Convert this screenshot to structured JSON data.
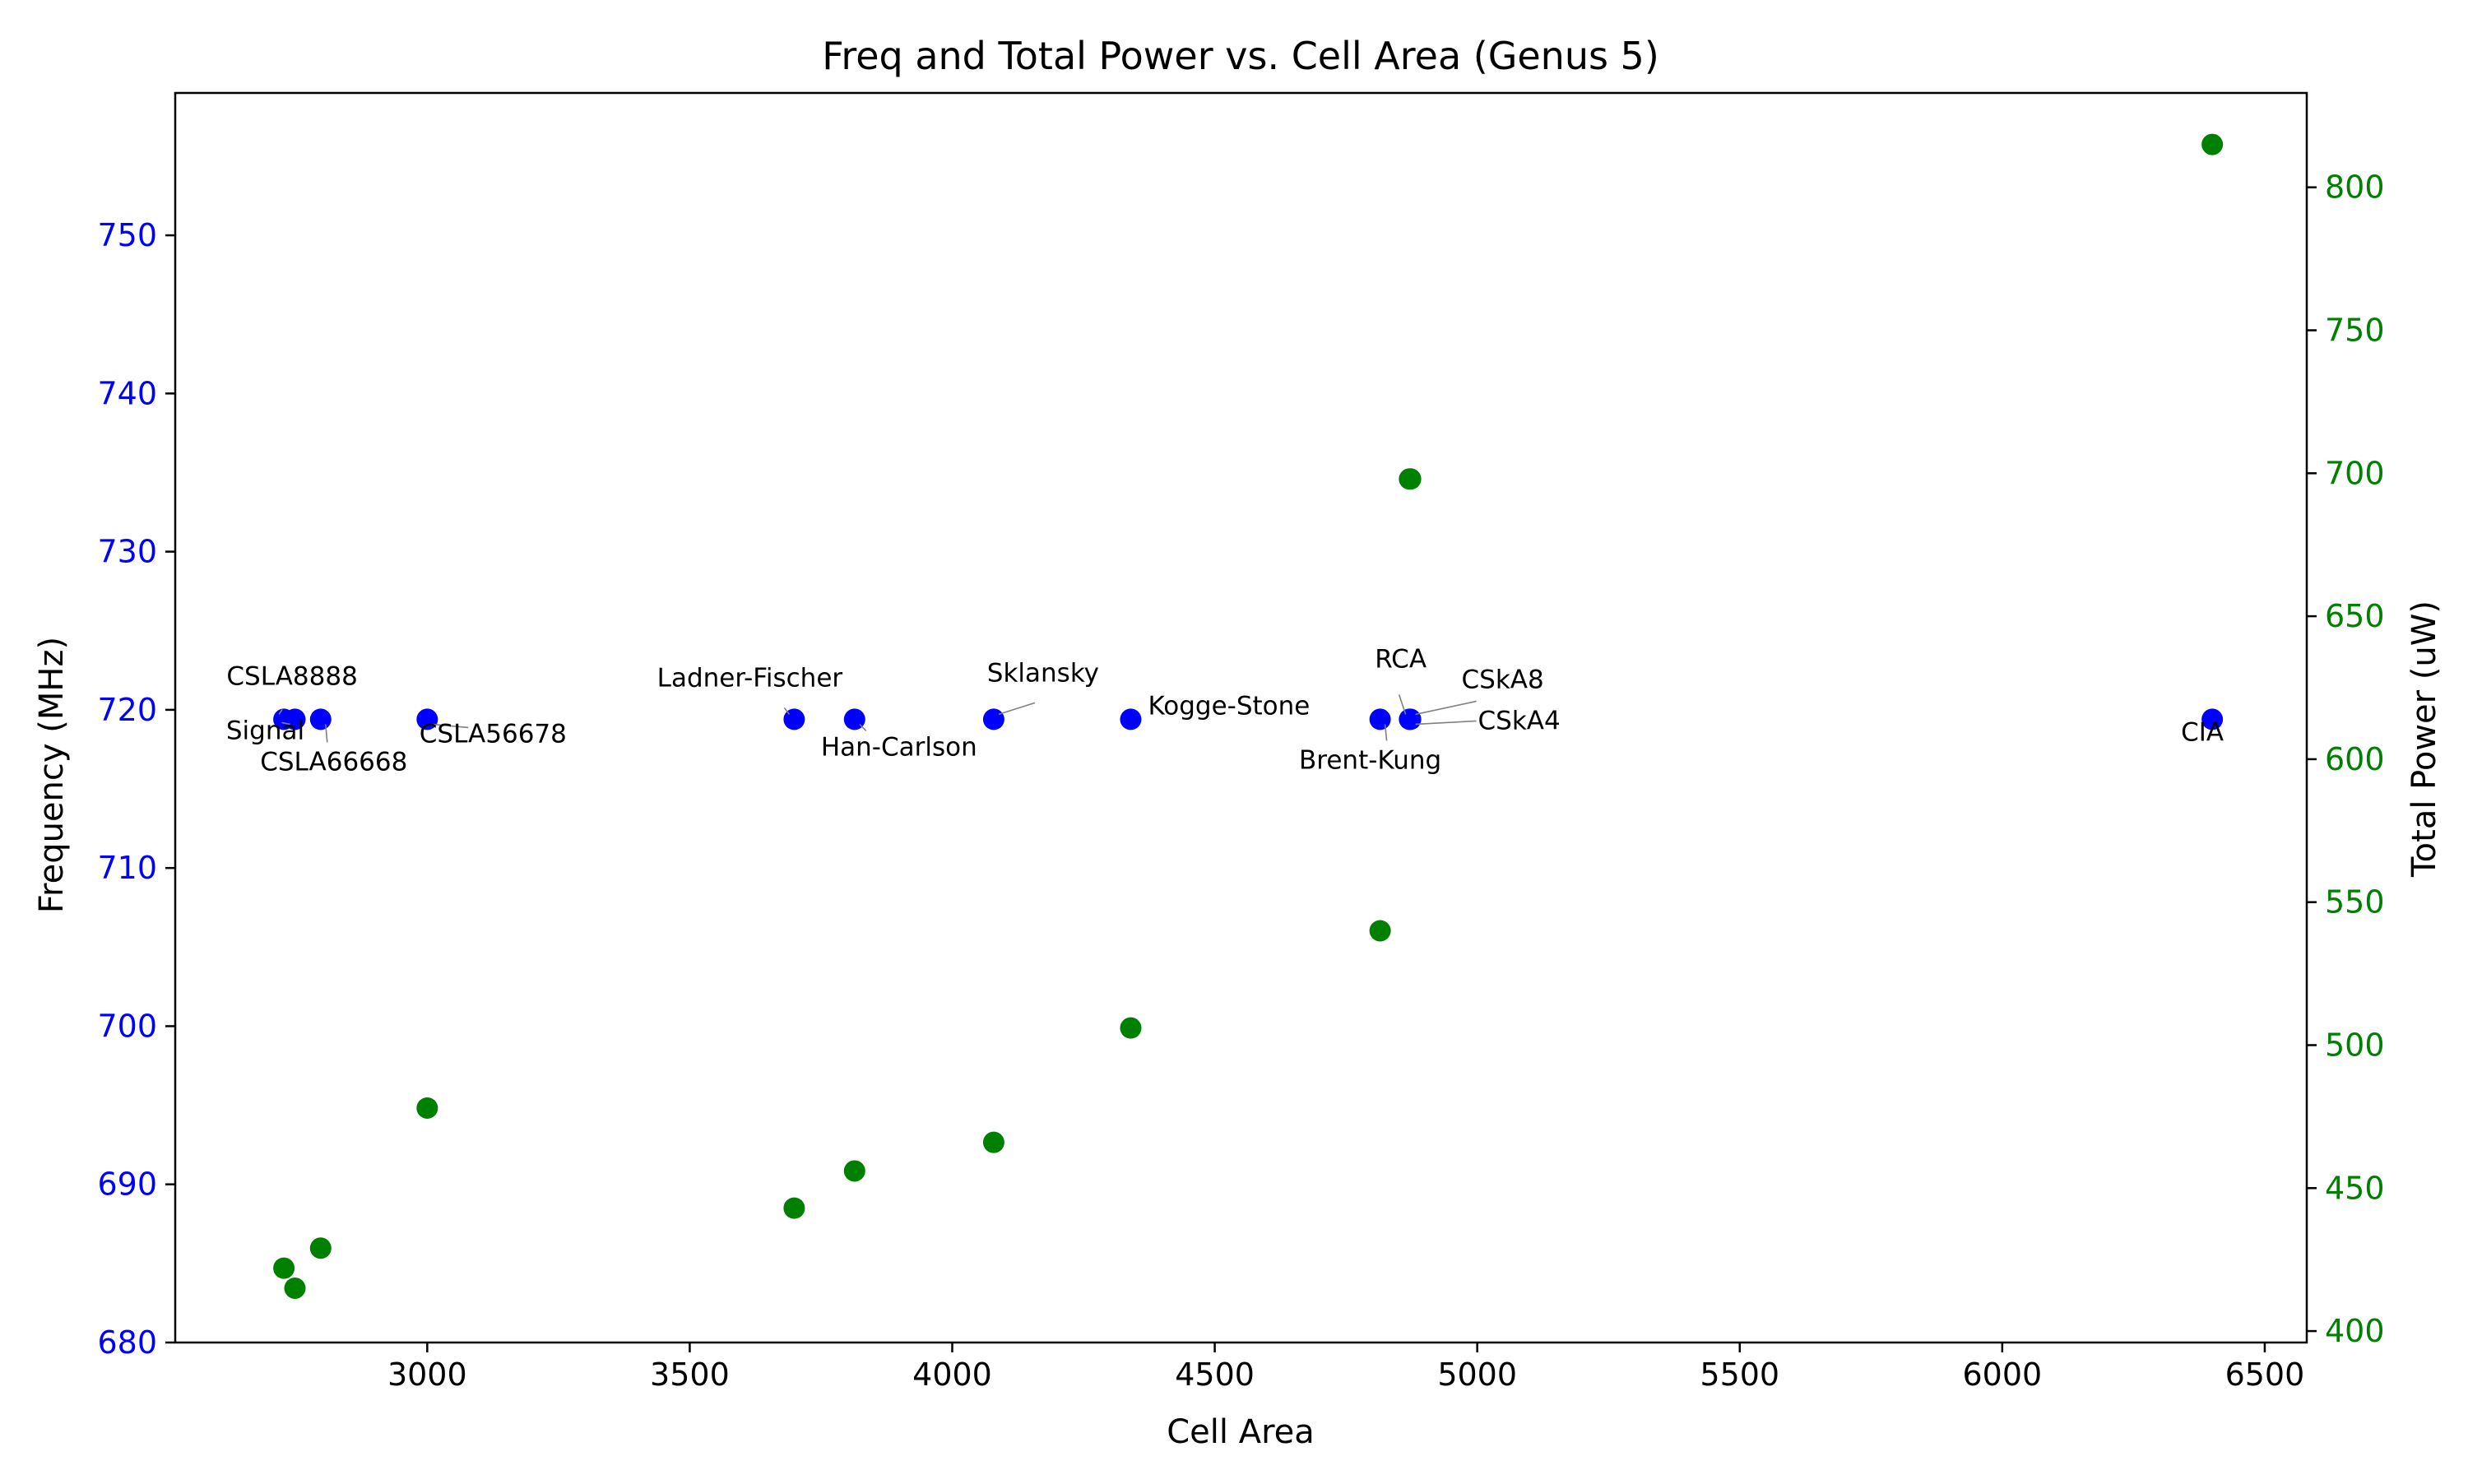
{
  "chart_data": {
    "type": "scatter",
    "title": "Freq and Total Power vs. Cell Area (Genus 5)",
    "xlabel": "Cell Area",
    "ylabel_left": "Frequency (MHz)",
    "ylabel_right": "Total Power (uW)",
    "xlim": [
      2520,
      6580
    ],
    "ylim_left": [
      680,
      759
    ],
    "ylim_right": [
      396,
      833
    ],
    "x_ticks": [
      3000,
      3500,
      4000,
      4500,
      5000,
      5500,
      6000,
      6500
    ],
    "y_left_ticks": [
      680,
      690,
      700,
      710,
      720,
      730,
      740,
      750
    ],
    "y_right_ticks": [
      400,
      450,
      500,
      550,
      600,
      650,
      700,
      750,
      800
    ],
    "grid": false,
    "colors": {
      "frequency": "#0000ff",
      "power": "#008000",
      "axis": "#000000",
      "arrow": "#808080"
    },
    "series": [
      {
        "axis": "left",
        "color": "#0000ff",
        "points": [
          {
            "x": 2727,
            "y": 719.4
          },
          {
            "x": 2748,
            "y": 719.4
          },
          {
            "x": 2797,
            "y": 719.4
          },
          {
            "x": 3000,
            "y": 719.4
          },
          {
            "x": 3699,
            "y": 719.4
          },
          {
            "x": 3814,
            "y": 719.4
          },
          {
            "x": 4079,
            "y": 719.4
          },
          {
            "x": 4340,
            "y": 719.4
          },
          {
            "x": 4815,
            "y": 719.4
          },
          {
            "x": 4871,
            "y": 719.4
          },
          {
            "x": 4873,
            "y": 719.4
          },
          {
            "x": 6400,
            "y": 719.4
          }
        ]
      },
      {
        "axis": "right",
        "color": "#008000",
        "points": [
          {
            "x": 2727,
            "y": 422
          },
          {
            "x": 2748,
            "y": 415
          },
          {
            "x": 2797,
            "y": 429
          },
          {
            "x": 3000,
            "y": 478
          },
          {
            "x": 3699,
            "y": 443
          },
          {
            "x": 3814,
            "y": 456
          },
          {
            "x": 4079,
            "y": 466
          },
          {
            "x": 4340,
            "y": 506
          },
          {
            "x": 4815,
            "y": 540
          },
          {
            "x": 4871,
            "y": 698
          },
          {
            "x": 4873,
            "y": 698
          },
          {
            "x": 6400,
            "y": 815
          }
        ]
      }
    ],
    "annotations": [
      {
        "label": "CSLA8888",
        "x": 2727,
        "y": 719.4
      },
      {
        "label": "Signal",
        "x": 2748,
        "y": 719.4
      },
      {
        "label": "CSLA66668",
        "x": 2797,
        "y": 719.4
      },
      {
        "label": "CSLA56678",
        "x": 3000,
        "y": 719.4
      },
      {
        "label": "Ladner-Fischer",
        "x": 3699,
        "y": 719.4
      },
      {
        "label": "Han-Carlson",
        "x": 3814,
        "y": 719.4
      },
      {
        "label": "Sklansky",
        "x": 4079,
        "y": 719.4
      },
      {
        "label": "Kogge-Stone",
        "x": 4340,
        "y": 719.4
      },
      {
        "label": "RCA",
        "x": 4873,
        "y": 719.4
      },
      {
        "label": "CSkA8",
        "x": 4873,
        "y": 719.4
      },
      {
        "label": "CSkA4",
        "x": 4873,
        "y": 719.4
      },
      {
        "label": "Brent-Kung",
        "x": 4815,
        "y": 719.4
      },
      {
        "label": "CIA",
        "x": 6400,
        "y": 719.4
      }
    ]
  }
}
